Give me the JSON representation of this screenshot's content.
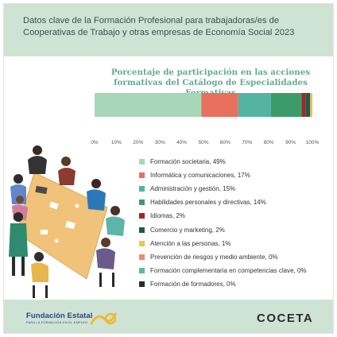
{
  "header": {
    "title": "Datos clave de la Formación Profesional para trabajadoras/es de Cooperativas de Trabajo y otras empresas de Economía Social 2023"
  },
  "footer": {
    "fundae_name": "Fundación Estatal",
    "fundae_tagline": "PARA LA FORMACIÓN EN EL EMPLEO",
    "coceta": "COCETA"
  },
  "chart_data": {
    "type": "bar",
    "orientation": "horizontal-stacked",
    "title": "Porcentaje de participación en las acciones formativas del Catálogo de Especialidades Formativas",
    "xlim": [
      0,
      100
    ],
    "x_ticks": [
      "0%",
      "10%",
      "20%",
      "30%",
      "40%",
      "50%",
      "60%",
      "70%",
      "80%",
      "90%",
      "100%"
    ],
    "grid": false,
    "legend_position": "bottom-right",
    "series": [
      {
        "name": "Formación societaria",
        "value": 49,
        "label": "Formación societaria, 49%",
        "color": "#a8d6b9"
      },
      {
        "name": "Informática y comunicaciones",
        "value": 17,
        "label": "Informática y comunicaciones, 17%",
        "color": "#e8705c"
      },
      {
        "name": "Administración y gestión",
        "value": 15,
        "label": "Administración y gestión, 15%",
        "color": "#55b3a1"
      },
      {
        "name": "Habilidades personales y directivas",
        "value": 14,
        "label": "Habilidades personales y directivas, 14%",
        "color": "#3c9c69"
      },
      {
        "name": "Idiomas",
        "value": 2,
        "label": "Idiomas, 2%",
        "color": "#9e2a2a"
      },
      {
        "name": "Comercio y marketing",
        "value": 2,
        "label": "Comercio y marketing, 2%",
        "color": "#1e5a4c"
      },
      {
        "name": "Atención a las personas",
        "value": 1,
        "label": "Atención a las personas, 1%",
        "color": "#f2c14e"
      },
      {
        "name": "Prevención de riesgos y medio ambiente",
        "value": 0,
        "label": "Prevención de riesgos y medio ambiente, 0%",
        "color": "#f08a72"
      },
      {
        "name": "Formación complementaria en competencias clave",
        "value": 0,
        "label": "Formación complementaria en competencias clave, 0%",
        "color": "#5fb79a"
      },
      {
        "name": "Formación de formadores",
        "value": 0,
        "label": "Formación de formadores, 0%",
        "color": "#2a2a2a"
      }
    ]
  }
}
